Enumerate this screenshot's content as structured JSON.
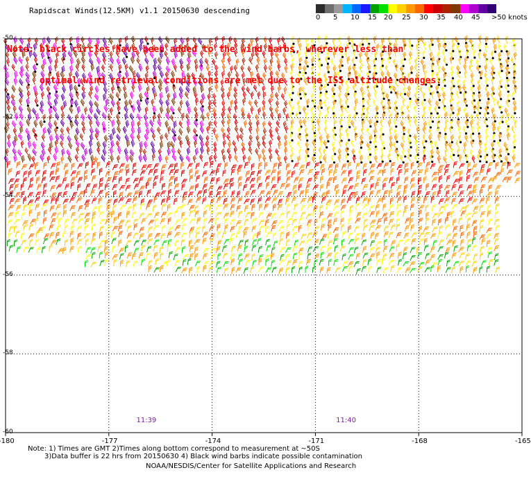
{
  "title": "Rapidscat Winds(12.5KM) v1.1 20150630 descending",
  "note_line1": "Note: black circles have been added to the wind barbs, wherever less than",
  "note_line2": "      optimal wind retrieval conditions are met due to the ISS altitude changes.",
  "colorbar": {
    "colors": [
      "#2b2b2b",
      "#6e6e6e",
      "#9a9a9a",
      "#00b3ff",
      "#0066ff",
      "#1a1aff",
      "#00a000",
      "#00dd00",
      "#ffff00",
      "#ffd000",
      "#ff9900",
      "#ff6600",
      "#ff0000",
      "#cc0000",
      "#aa2200",
      "#7a3a00",
      "#ff00ff",
      "#b000d0",
      "#6000a0",
      "#300070"
    ],
    "labels": [
      "0",
      "5",
      "10",
      "15",
      "20",
      "25",
      "30",
      "35",
      "40",
      "45",
      ">50 knots"
    ]
  },
  "axes": {
    "x_ticks": [
      "-180",
      "-177",
      "-174",
      "-171",
      "-168",
      "-165"
    ],
    "y_ticks": [
      "-50",
      "-52",
      "-54",
      "-56",
      "-58",
      "-60"
    ],
    "x_range": [
      -180,
      -165
    ],
    "y_range": [
      -60,
      -50
    ]
  },
  "times": [
    "11:39",
    "11:40"
  ],
  "footer": {
    "line1": "Note: 1) Times are GMT 2)Times along bottom correspond to measurement at ~50S",
    "line2": "3)Data buffer is 22 hrs from 20150630 4) Black wind barbs indicate possible contamination",
    "credit": "NOAA/NESDIS/Center for Satellite Applications and Research"
  }
}
